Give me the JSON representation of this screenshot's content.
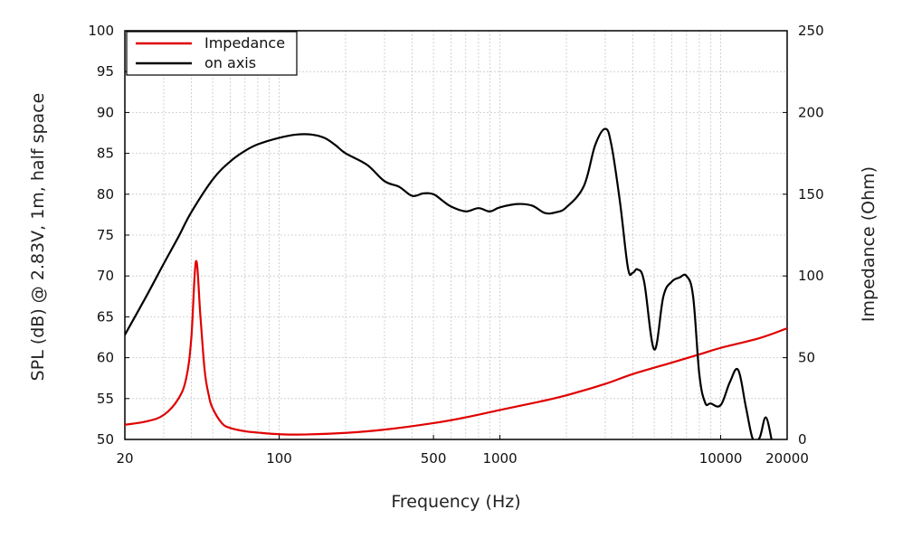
{
  "chart_data": {
    "type": "line",
    "title": "",
    "xlabel": "Frequency (Hz)",
    "ylabel_left": "SPL (dB) @ 2.83V, 1m, half space",
    "ylabel_right": "Impedance (Ohm)",
    "x_scale": "log",
    "xlim": [
      20,
      20000
    ],
    "ylim_left": [
      50,
      100
    ],
    "ylim_right": [
      0,
      250
    ],
    "x_ticks": [
      20,
      100,
      500,
      1000,
      10000,
      20000
    ],
    "x_tick_labels": [
      "20",
      "100",
      "500",
      "1000",
      "10000",
      "20000"
    ],
    "y_left_ticks": [
      50,
      55,
      60,
      65,
      70,
      75,
      80,
      85,
      90,
      95,
      100
    ],
    "y_left_tick_labels": [
      "50",
      "55",
      "60",
      "65",
      "70",
      "75",
      "80",
      "85",
      "90",
      "95",
      "100"
    ],
    "y_right_ticks": [
      0,
      50,
      100,
      150,
      200,
      250
    ],
    "y_right_tick_labels": [
      "0",
      "50",
      "100",
      "150",
      "200",
      "250"
    ],
    "grid": true,
    "legend_position": "top-left",
    "series": [
      {
        "name": "Impedance",
        "axis": "right",
        "color": "#e00000",
        "x": [
          20,
          25,
          30,
          35,
          38,
          40,
          42,
          44,
          46,
          48,
          50,
          55,
          60,
          70,
          80,
          100,
          130,
          200,
          300,
          500,
          700,
          1000,
          1500,
          2000,
          3000,
          4000,
          6000,
          8000,
          10000,
          15000,
          20000
        ],
        "y": [
          9,
          11,
          15,
          25,
          38,
          62,
          109,
          75,
          42,
          27,
          19,
          10,
          7,
          5,
          4.2,
          3.2,
          3.0,
          4,
          6,
          10,
          13.5,
          18,
          23,
          27,
          34,
          40,
          47,
          52,
          56,
          62,
          68
        ]
      },
      {
        "name": "on axis",
        "axis": "left",
        "color": "#000000",
        "x": [
          20,
          25,
          30,
          35,
          40,
          50,
          60,
          70,
          80,
          100,
          120,
          140,
          160,
          180,
          200,
          250,
          300,
          350,
          400,
          450,
          500,
          550,
          600,
          700,
          800,
          900,
          1000,
          1200,
          1400,
          1600,
          1800,
          2000,
          2400,
          2700,
          3000,
          3200,
          3500,
          3800,
          4000,
          4200,
          4500,
          5000,
          5500,
          6000,
          6500,
          7000,
          7500,
          8000,
          8500,
          9000,
          10000,
          11000,
          12000,
          13000,
          14000,
          15000,
          16000,
          17000
        ],
        "y": [
          62.8,
          67.5,
          71.5,
          74.8,
          77.8,
          81.8,
          84.0,
          85.3,
          86.1,
          86.9,
          87.3,
          87.3,
          86.9,
          86.0,
          85.0,
          83.6,
          81.6,
          80.9,
          79.8,
          80.1,
          80.0,
          79.2,
          78.5,
          77.9,
          78.3,
          77.9,
          78.4,
          78.8,
          78.6,
          77.7,
          77.8,
          78.4,
          81.0,
          86.0,
          88.0,
          86.0,
          79.0,
          71.0,
          70.4,
          70.8,
          69.3,
          61.0,
          67.5,
          69.3,
          69.8,
          70.0,
          67.5,
          58.0,
          54.5,
          54.4,
          54.2,
          57.0,
          58.5,
          54.0,
          50.0,
          50.2,
          52.7,
          50.0
        ]
      }
    ]
  }
}
